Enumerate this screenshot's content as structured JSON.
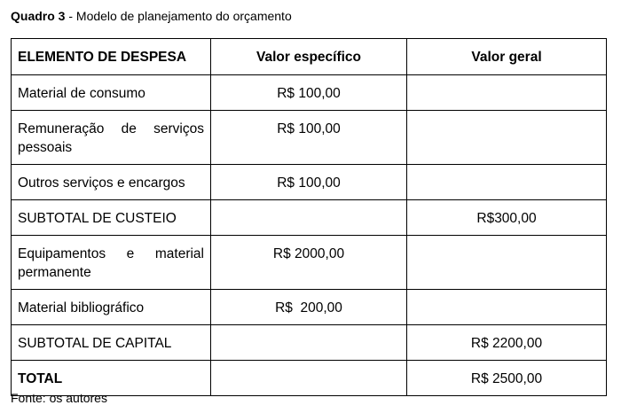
{
  "caption": {
    "label": "Quadro 3",
    "text": " - Modelo de planejamento do orçamento"
  },
  "table": {
    "headers": [
      "ELEMENTO DE DESPESA",
      "Valor específico",
      "Valor geral"
    ],
    "rows": [
      [
        "Material de consumo",
        "R$ 100,00",
        ""
      ],
      [
        "Remuneração de serviços pessoais",
        "R$ 100,00",
        ""
      ],
      [
        "Outros serviços e encargos",
        "R$ 100,00",
        ""
      ],
      [
        "SUBTOTAL DE CUSTEIO",
        "",
        "R$300,00"
      ],
      [
        "Equipamentos e material permanente",
        "R$ 2000,00",
        ""
      ],
      [
        "Material bibliográfico",
        "R$  200,00",
        ""
      ],
      [
        "SUBTOTAL DE CAPITAL",
        "",
        "R$ 2200,00"
      ],
      [
        "TOTAL",
        "",
        "R$ 2500,00"
      ]
    ]
  },
  "source": "Fonte: os autores"
}
